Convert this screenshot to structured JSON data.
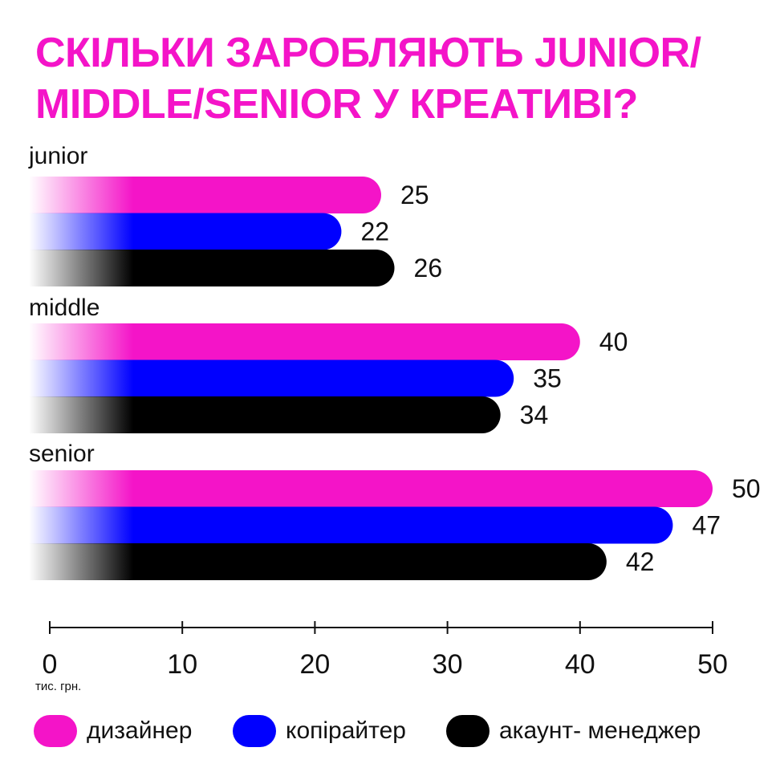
{
  "title_lines": [
    "СКІЛЬКИ ЗАРОБЛЯЮТЬ JUNIOR/",
    "MIDDLE/SENIOR У КРЕАТИВІ?"
  ],
  "colors": {
    "accent": "#f414c8",
    "designer": "#f414c8",
    "copywriter": "#0000ff",
    "account_manager": "#000000"
  },
  "chart_data": {
    "type": "bar",
    "orientation": "horizontal",
    "title": "СКІЛЬКИ ЗАРОБЛЯЮТЬ JUNIOR/MIDDLE/SENIOR У КРЕАТИВІ?",
    "categories": [
      "junior",
      "middle",
      "senior"
    ],
    "series": [
      {
        "name": "дизайнер",
        "color": "#f414c8",
        "values": [
          25,
          40,
          50
        ]
      },
      {
        "name": "копірайтер",
        "color": "#0000ff",
        "values": [
          22,
          35,
          47
        ]
      },
      {
        "name": "акаунт- менеджер",
        "color": "#000000",
        "values": [
          26,
          34,
          42
        ]
      }
    ],
    "xlim": [
      0,
      50
    ],
    "xticks": [
      0,
      10,
      20,
      30,
      40,
      50
    ],
    "xlabel": "тис. грн.",
    "legend_position": "bottom",
    "grid": false
  }
}
